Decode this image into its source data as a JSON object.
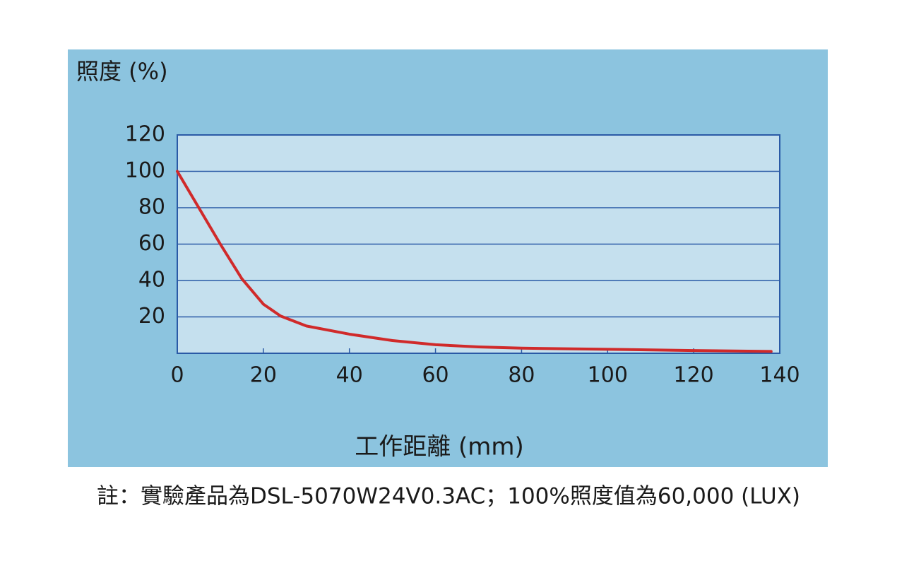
{
  "chart_data": {
    "type": "line",
    "y_label": "照度 (%)",
    "x_label": "工作距離 (mm)",
    "note": "註：實驗產品為DSL-5070W24V0.3AC；100%照度值為60,000 (LUX)",
    "x": [
      0,
      5,
      10,
      15,
      20,
      24,
      30,
      40,
      50,
      60,
      70,
      80,
      100,
      120,
      138
    ],
    "series": [
      {
        "color": "#d02a2a",
        "values": [
          100,
          80,
          60,
          41,
          27,
          20.5,
          15,
          10.5,
          7,
          4.7,
          3.5,
          2.8,
          2.2,
          1.5,
          1
        ]
      }
    ],
    "xlim": [
      0,
      140
    ],
    "xticks": [
      0,
      20,
      40,
      60,
      80,
      100,
      120,
      140
    ],
    "ylim": [
      0,
      120
    ],
    "yticks": [
      20,
      40,
      60,
      80,
      100,
      120
    ],
    "grid": true
  }
}
